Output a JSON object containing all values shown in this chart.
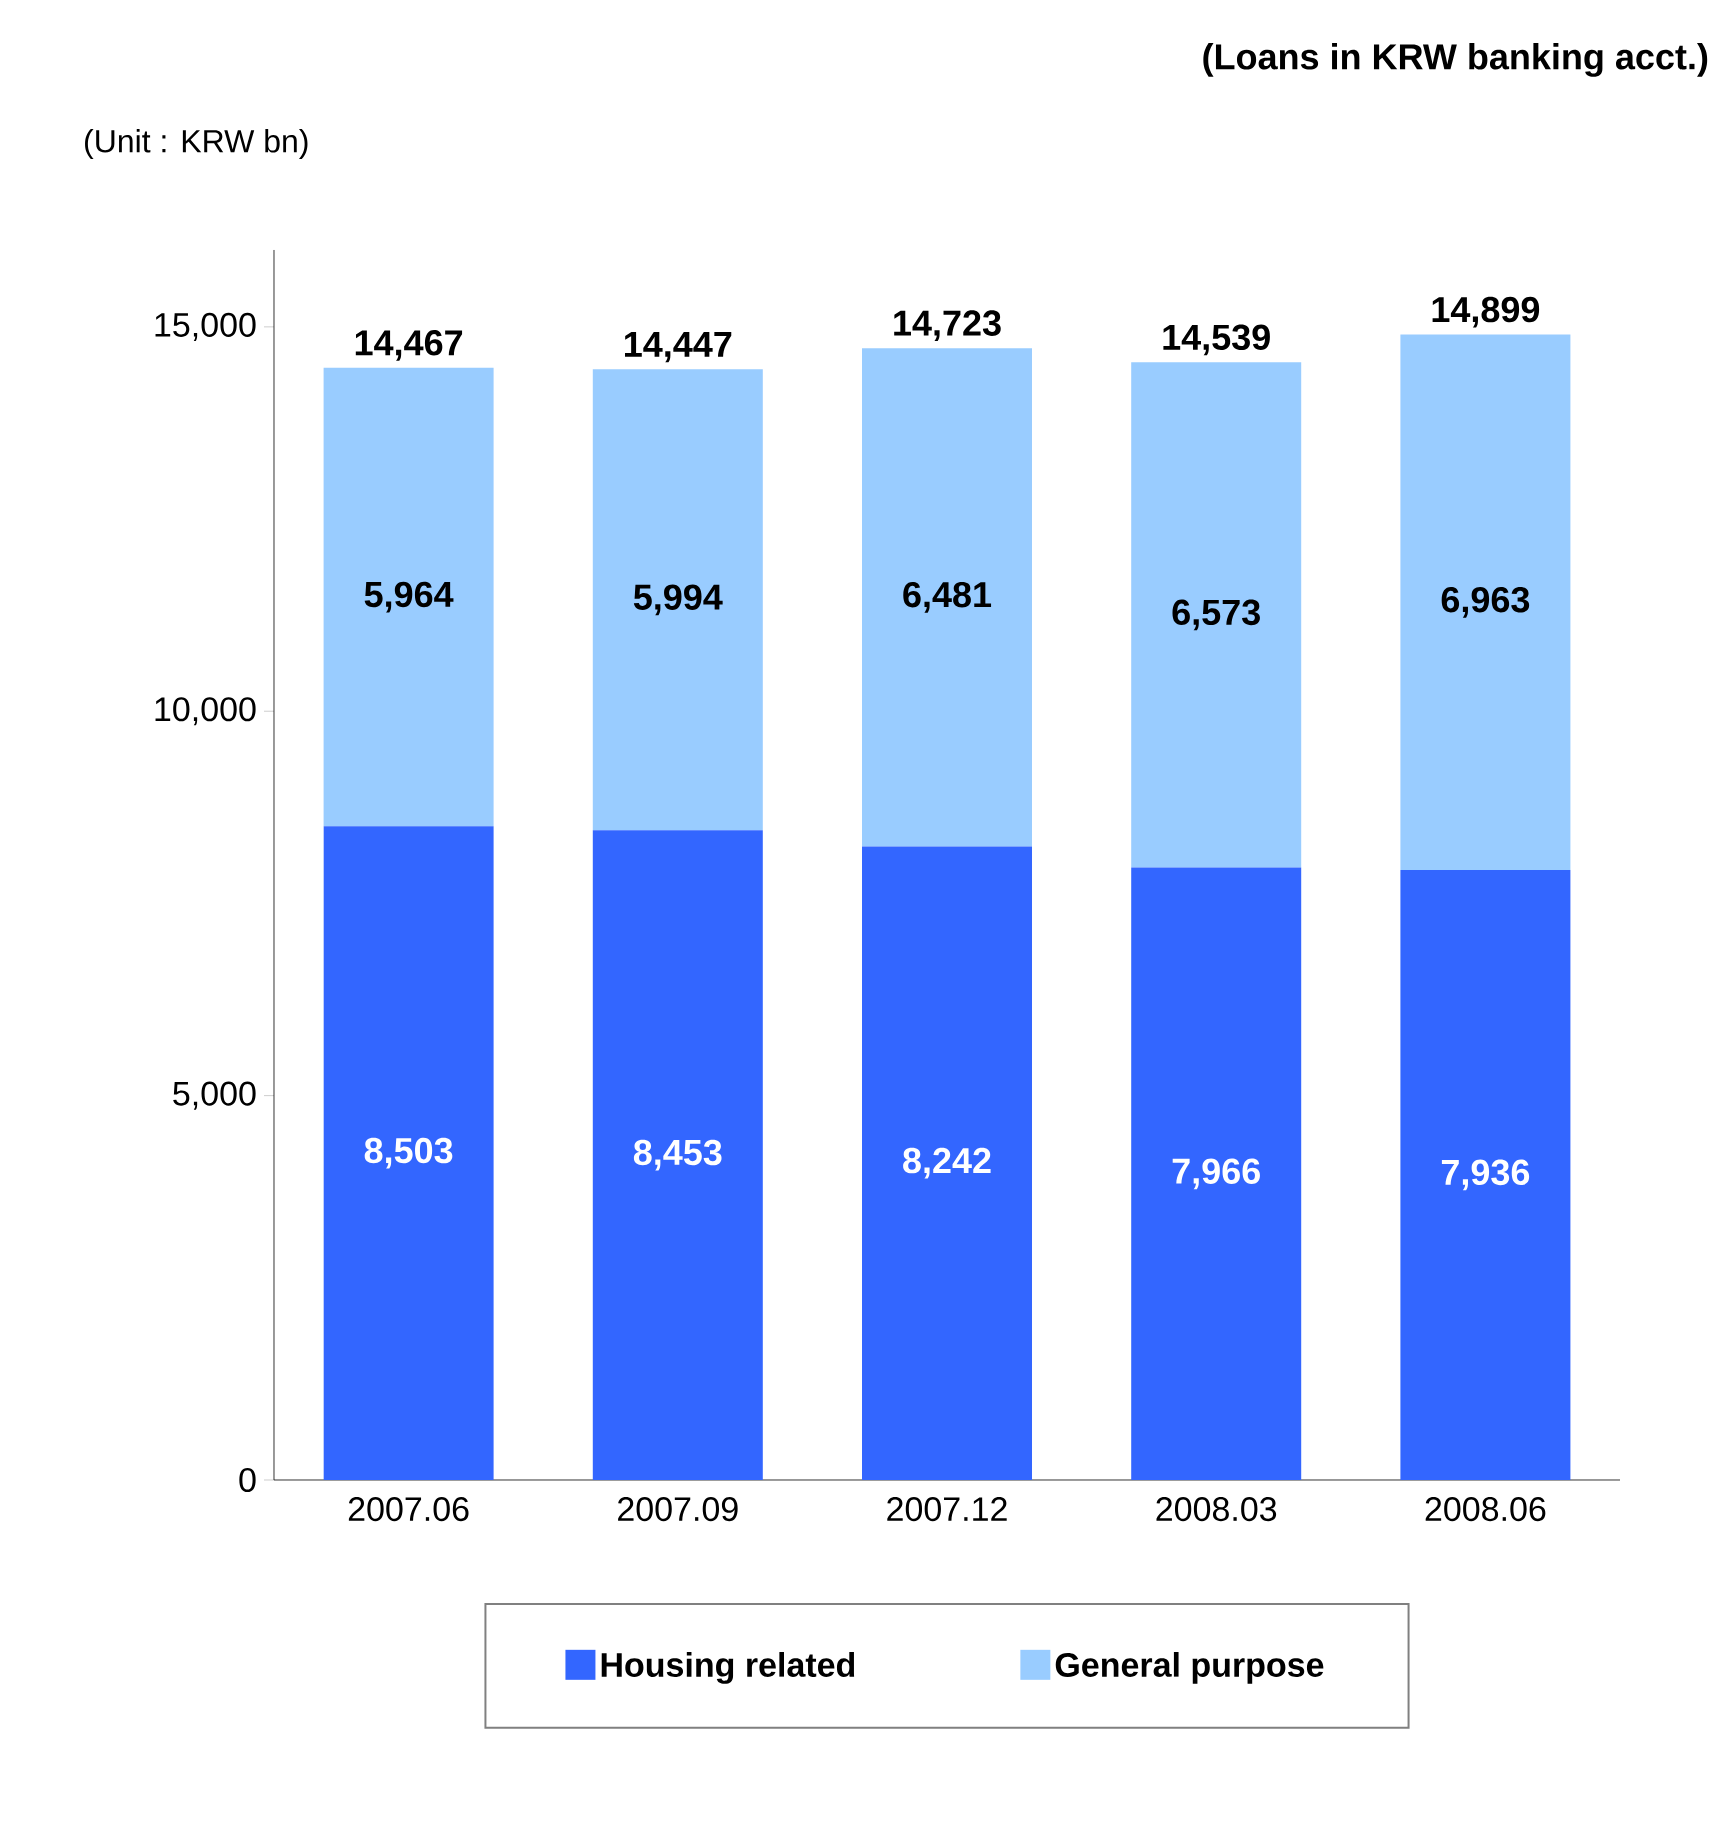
{
  "chart_data": {
    "type": "bar",
    "stacked": true,
    "title": "(Loans in KRW banking acct.)",
    "subtitle": "(Unit : KRW bn)",
    "categories": [
      "2007.06",
      "2007.09",
      "2007.12",
      "2008.03",
      "2008.06"
    ],
    "series": [
      {
        "name": "Housing related",
        "color": "#3366ff",
        "values": [
          8503,
          8453,
          8242,
          7966,
          7936
        ],
        "value_labels": [
          "8,503",
          "8,453",
          "8,242",
          "7,966",
          "7,936"
        ]
      },
      {
        "name": "General purpose",
        "color": "#99ccff",
        "values": [
          5964,
          5994,
          6481,
          6573,
          6963
        ],
        "value_labels": [
          "5,964",
          "5,994",
          "6,481",
          "6,573",
          "6,963"
        ]
      }
    ],
    "totals": [
      "14,467",
      "14,447",
      "14,723",
      "14,539",
      "14,899"
    ],
    "ylim": [
      0,
      16000
    ],
    "yticks": [
      {
        "value": 0,
        "label": "0"
      },
      {
        "value": 5000,
        "label": "5,000"
      },
      {
        "value": 10000,
        "label": "10,000"
      },
      {
        "value": 15000,
        "label": "15,000"
      }
    ],
    "grid": false,
    "legend": "bottom"
  }
}
